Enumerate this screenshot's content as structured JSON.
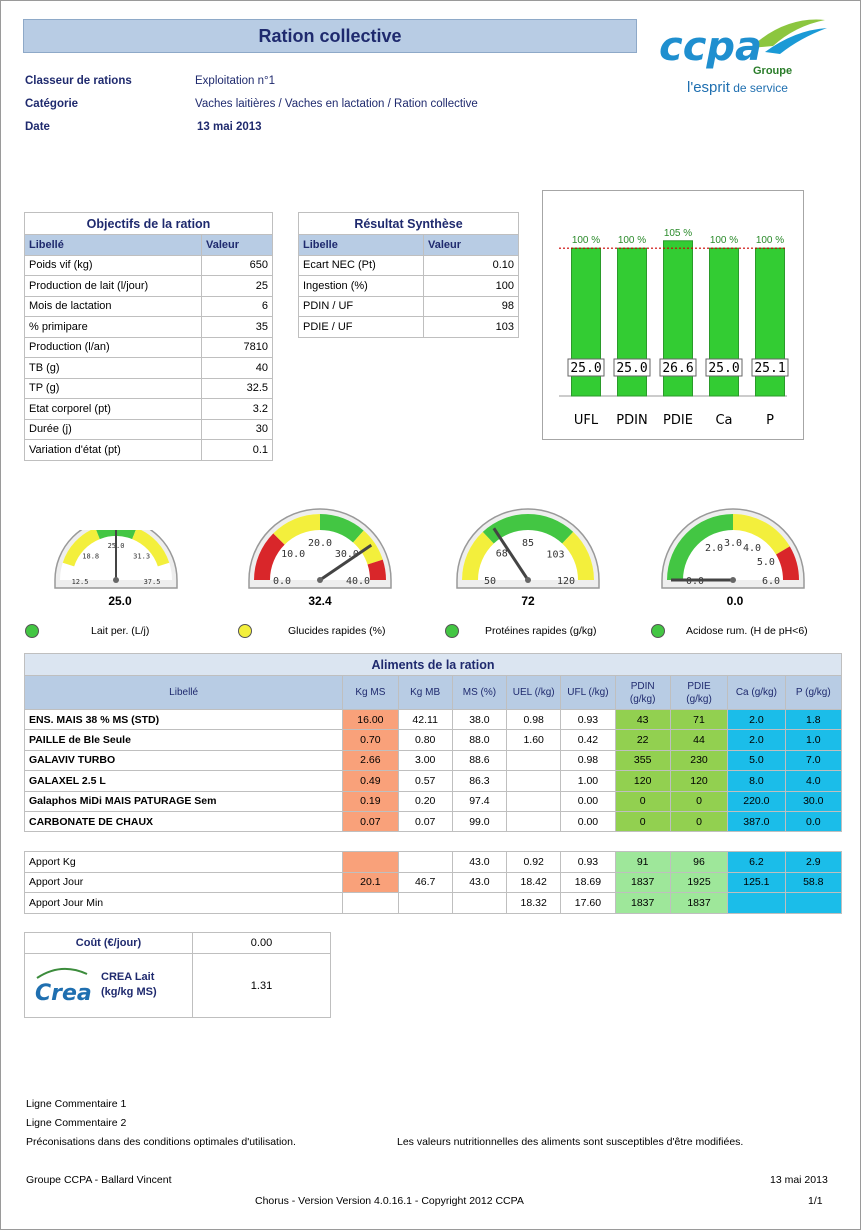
{
  "title": "Ration collective",
  "logo": {
    "brand": "ccpa",
    "group": "Groupe",
    "tagline_a": "l'esprit",
    "tagline_b": " de service"
  },
  "meta": [
    {
      "key": "Classeur de rations",
      "value": "Exploitation n°1"
    },
    {
      "key": "Catégorie",
      "value": "Vaches laitières / Vaches en lactation / Ration collective"
    },
    {
      "key": "Date",
      "value": "13 mai 2013"
    }
  ],
  "objectifs": {
    "caption": "Objectifs de la ration",
    "headers": [
      "Libellé",
      "Valeur"
    ],
    "rows": [
      [
        "Poids vif (kg)",
        "650"
      ],
      [
        "Production de lait (l/jour)",
        "25"
      ],
      [
        "Mois de lactation",
        "6"
      ],
      [
        "% primipare",
        "35"
      ],
      [
        "Production (l/an)",
        "7810"
      ],
      [
        "TB (g)",
        "40"
      ],
      [
        "TP (g)",
        "32.5"
      ],
      [
        "Etat corporel (pt)",
        "3.2"
      ],
      [
        "Durée (j)",
        "30"
      ],
      [
        "Variation d'état (pt)",
        "0.1"
      ]
    ]
  },
  "synthese": {
    "caption": "Résultat Synthèse",
    "headers": [
      "Libelle",
      "Valeur"
    ],
    "rows": [
      [
        "Ecart NEC (Pt)",
        "0.10"
      ],
      [
        "Ingestion (%)",
        "100"
      ],
      [
        "PDIN / UF",
        "98"
      ],
      [
        "PDIE / UF",
        "103"
      ]
    ]
  },
  "chart_data": {
    "type": "bar",
    "categories": [
      "UFL",
      "PDIN",
      "PDIE",
      "Ca",
      "P"
    ],
    "values_pct": [
      100,
      100,
      105,
      100,
      100
    ],
    "pct_labels": [
      "100 %",
      "100 %",
      "105 %",
      "100 %",
      "100 %"
    ],
    "value_labels": [
      "25.0",
      "25.0",
      "26.6",
      "25.0",
      "25.1"
    ],
    "reference_line_pct": 100,
    "ylim": [
      0,
      115
    ],
    "bar_color": "#33cc33",
    "line_color": "#cc0000"
  },
  "gauges": [
    {
      "value": 25.0,
      "display": "25.0",
      "min": 12.5,
      "max": 37.5,
      "ticks": [
        "12.5",
        "18.8",
        "25.0",
        "31.3",
        "37.5"
      ]
    },
    {
      "value": 32.4,
      "display": "32.4",
      "min": 0,
      "max": 40,
      "ticks": [
        "0.0",
        "10.0",
        "20.0",
        "30.0",
        "40.0"
      ]
    },
    {
      "value": 72,
      "display": "72",
      "min": 50,
      "max": 120,
      "ticks": [
        "50",
        "68",
        "85",
        "103",
        "120"
      ]
    },
    {
      "value": 0.0,
      "display": "0.0",
      "min": 0,
      "max": 6,
      "ticks": [
        "0.0",
        "2.0",
        "3.0",
        "4.0",
        "5.0",
        "6.0"
      ]
    }
  ],
  "legend": [
    {
      "label": "Lait per. (L/j)",
      "status": "green"
    },
    {
      "label": "Glucides rapides (%)",
      "status": "yellow"
    },
    {
      "label": "Protéines rapides (g/kg)",
      "status": "green"
    },
    {
      "label": "Acidose rum. (H de pH<6)",
      "status": "green"
    }
  ],
  "aliments": {
    "caption": "Aliments de la ration",
    "headers": [
      "Libellé",
      "Kg MS",
      "Kg MB",
      "MS (%)",
      "UEL (/kg)",
      "UFL (/kg)",
      "PDIN (g/kg)",
      "PDIE (g/kg)",
      "Ca (g/kg)",
      "P (g/kg)"
    ],
    "rows": [
      [
        "ENS. MAIS 38 % MS (STD)",
        "16.00",
        "42.11",
        "38.0",
        "0.98",
        "0.93",
        "43",
        "71",
        "2.0",
        "1.8"
      ],
      [
        "PAILLE de Ble Seule",
        "0.70",
        "0.80",
        "88.0",
        "1.60",
        "0.42",
        "22",
        "44",
        "2.0",
        "1.0"
      ],
      [
        "GALAVIV TURBO",
        "2.66",
        "3.00",
        "88.6",
        "",
        "0.98",
        "355",
        "230",
        "5.0",
        "7.0"
      ],
      [
        "GALAXEL 2.5 L",
        "0.49",
        "0.57",
        "86.3",
        "",
        "1.00",
        "120",
        "120",
        "8.0",
        "4.0"
      ],
      [
        "Galaphos MiDi MAIS PATURAGE Sem",
        "0.19",
        "0.20",
        "97.4",
        "",
        "0.00",
        "0",
        "0",
        "220.0",
        "30.0"
      ],
      [
        "CARBONATE DE CHAUX",
        "0.07",
        "0.07",
        "99.0",
        "",
        "0.00",
        "0",
        "0",
        "387.0",
        "0.0"
      ]
    ],
    "totals": [
      [
        "Apport Kg",
        "",
        "",
        "43.0",
        "0.92",
        "0.93",
        "91",
        "96",
        "6.2",
        "2.9"
      ],
      [
        "Apport Jour",
        "20.1",
        "46.7",
        "43.0",
        "18.42",
        "18.69",
        "1837",
        "1925",
        "125.1",
        "58.8"
      ],
      [
        "Apport Jour Min",
        "",
        "",
        "",
        "18.32",
        "17.60",
        "1837",
        "1837",
        "",
        ""
      ]
    ]
  },
  "cout": {
    "label": "Coût (€/jour)",
    "value": "0.00",
    "crea_logo": "Crea",
    "crea_label": "CREA Lait (kg/kg MS)",
    "crea_value": "1.31"
  },
  "comments": {
    "line1": "Ligne Commentaire 1",
    "line2": "Ligne Commentaire 2",
    "reco": "Préconisations dans des conditions optimales d'utilisation.",
    "disclaimer": "Les valeurs nutritionnelles des aliments sont susceptibles d'être modifiées."
  },
  "footer": {
    "author": "Groupe CCPA - Ballard Vincent",
    "date": "13 mai 2013",
    "version": "Chorus - Version Version 4.0.16.1 - Copyright 2012 CCPA",
    "page": "1/1"
  }
}
